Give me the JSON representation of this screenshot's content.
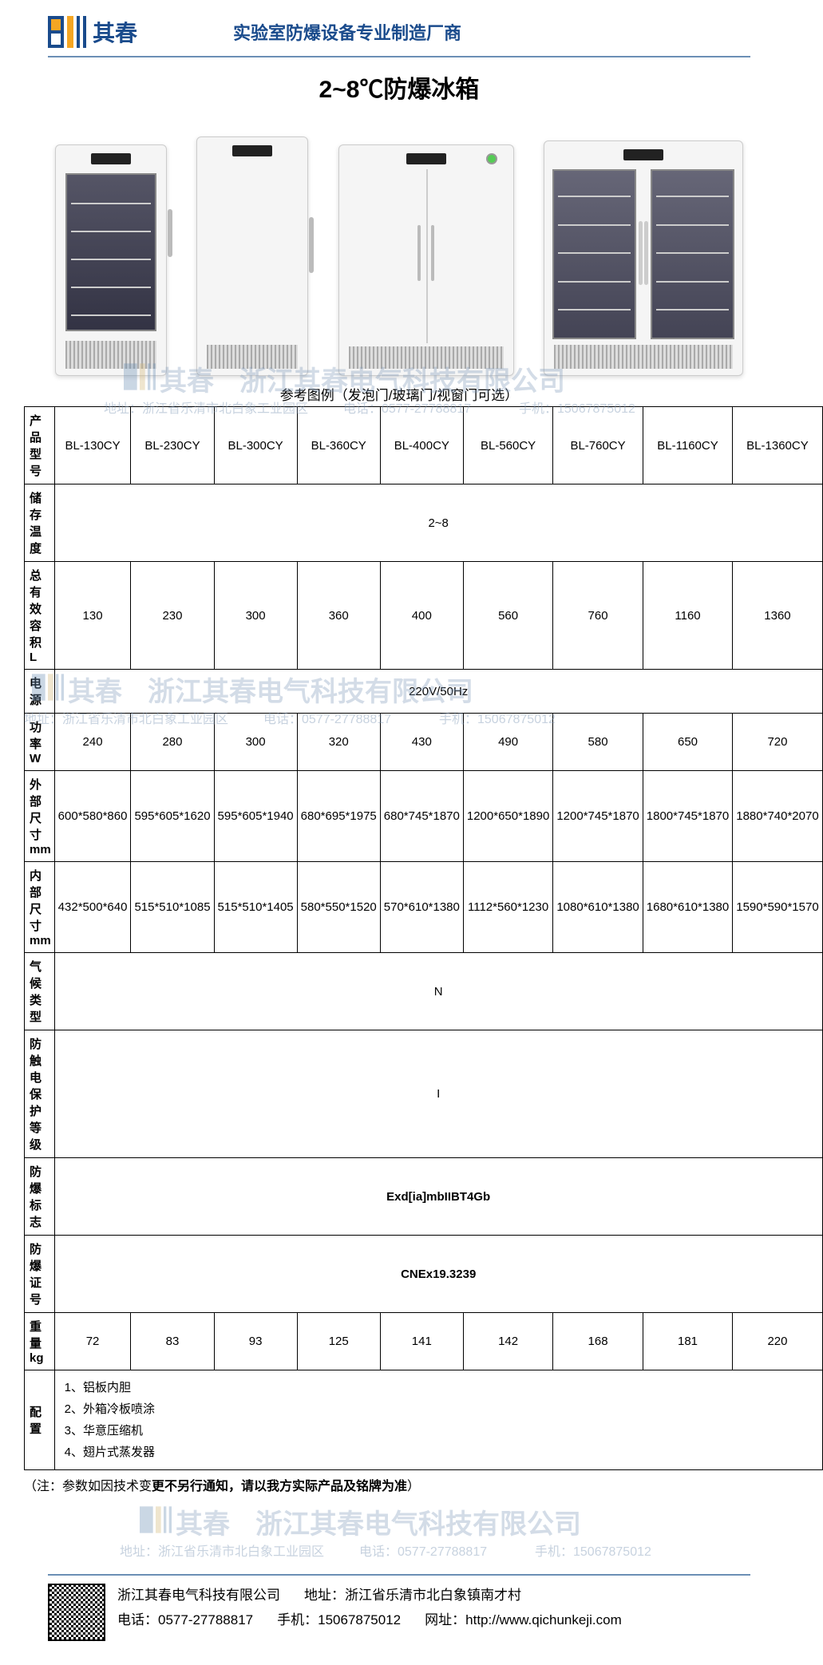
{
  "header": {
    "logo_text": "其春",
    "tagline": "实验室防爆设备专业制造厂商"
  },
  "title": "2~8℃防爆冰箱",
  "caption": "参考图例（发泡门/玻璃门/视窗门可选）",
  "watermarks": {
    "company": "浙江其春电气科技有限公司",
    "logo_text": "其春",
    "address": "地址：浙江省乐清市北白象工业园区",
    "phone": "电话：0577-27788817",
    "mobile": "手机：15067875012"
  },
  "table": {
    "columns": [
      "产品型号",
      "BL-130CY",
      "BL-230CY",
      "BL-300CY",
      "BL-360CY",
      "BL-400CY",
      "BL-560CY",
      "BL-760CY",
      "BL-1160CY",
      "BL-1360CY"
    ],
    "rows": [
      {
        "label": "储存温度",
        "span": true,
        "value": "2~8"
      },
      {
        "label": "总有效容积 L",
        "values": [
          "130",
          "230",
          "300",
          "360",
          "400",
          "560",
          "760",
          "1160",
          "1360"
        ]
      },
      {
        "label": "电源",
        "span": true,
        "value": "220V/50Hz"
      },
      {
        "label": "功率 W",
        "values": [
          "240",
          "280",
          "300",
          "320",
          "430",
          "490",
          "580",
          "650",
          "720"
        ]
      },
      {
        "label": "外部尺寸mm",
        "values": [
          "600*580*860",
          "595*605*1620",
          "595*605*1940",
          "680*695*1975",
          "680*745*1870",
          "1200*650*1890",
          "1200*745*1870",
          "1800*745*1870",
          "1880*740*2070"
        ]
      },
      {
        "label": "内部尺寸mm",
        "values": [
          "432*500*640",
          "515*510*1085",
          "515*510*1405",
          "580*550*1520",
          "570*610*1380",
          "1112*560*1230",
          "1080*610*1380",
          "1680*610*1380",
          "1590*590*1570"
        ]
      },
      {
        "label": "气候类型",
        "span": true,
        "value": "N"
      },
      {
        "label": "防触电保护等级",
        "span": true,
        "value": "I"
      },
      {
        "label": "防爆标志",
        "span": true,
        "value": "Exd[ia]mbIIBT4Gb"
      },
      {
        "label": "防爆证号",
        "span": true,
        "value": "CNEx19.3239"
      },
      {
        "label": "重量 kg",
        "values": [
          "72",
          "83",
          "93",
          "125",
          "141",
          "142",
          "168",
          "181",
          "220"
        ]
      },
      {
        "label": "配置",
        "span": true,
        "config": true,
        "lines": [
          "1、铝板内胆",
          "2、外箱冷板喷涂",
          "3、华意压缩机",
          "4、翅片式蒸发器"
        ]
      }
    ]
  },
  "note": {
    "prefix": "（注：参数如因技术变",
    "bold": "更不另行通知，请以我方实际产品及铭牌为准",
    "suffix": "）"
  },
  "footer": {
    "company": "浙江其春电气科技有限公司",
    "address_label": "地址：",
    "address": "浙江省乐清市北白象镇南才村",
    "phone_label": "电话：",
    "phone": "0577-27788817",
    "mobile_label": "手机：",
    "mobile": "15067875012",
    "url_label": "网址：",
    "url": "http://www.qichunkeji.com"
  },
  "colors": {
    "brand_blue": "#1a4b8c",
    "rule_blue": "#6b8fb5",
    "watermark": "rgba(130,155,185,0.35)"
  }
}
